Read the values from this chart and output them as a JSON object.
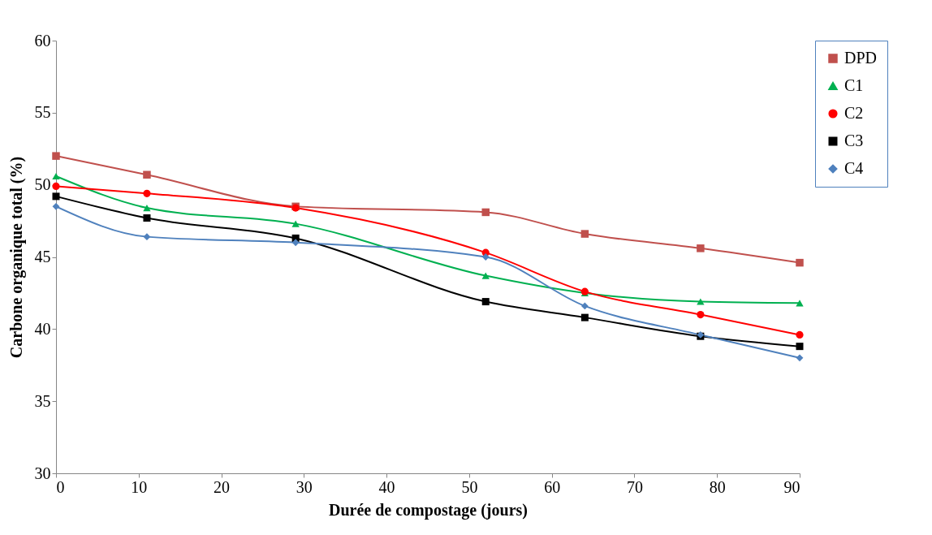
{
  "chart_data": {
    "type": "line",
    "xlabel": "Durée de compostage (jours)",
    "ylabel": "Carbone organique total (%)",
    "x": [
      0,
      11,
      29,
      52,
      64,
      78,
      90
    ],
    "xlim": [
      0,
      90
    ],
    "xticks": [
      0,
      10,
      20,
      30,
      40,
      50,
      60,
      70,
      80,
      90
    ],
    "ylim": [
      30,
      60
    ],
    "yticks": [
      30,
      35,
      40,
      45,
      50,
      55,
      60
    ],
    "grid": false,
    "legend": "right",
    "series": [
      {
        "name": "DPD",
        "color": "#c0504d",
        "marker": "square",
        "values": [
          52.0,
          50.7,
          48.5,
          48.1,
          46.6,
          45.6,
          44.6
        ]
      },
      {
        "name": "C1",
        "color": "#00b050",
        "marker": "triangle",
        "values": [
          50.6,
          48.4,
          47.3,
          43.7,
          42.5,
          41.9,
          41.8
        ]
      },
      {
        "name": "C2",
        "color": "#ff0000",
        "marker": "circle",
        "values": [
          49.9,
          49.4,
          48.4,
          45.3,
          42.6,
          41.0,
          39.6
        ]
      },
      {
        "name": "C3",
        "color": "#000000",
        "marker": "square",
        "values": [
          49.2,
          47.7,
          46.3,
          41.9,
          40.8,
          39.5,
          38.8
        ]
      },
      {
        "name": "C4",
        "color": "#4f81bd",
        "marker": "diamond",
        "values": [
          48.5,
          46.4,
          46.0,
          45.0,
          41.6,
          39.6,
          38.0
        ]
      }
    ]
  }
}
